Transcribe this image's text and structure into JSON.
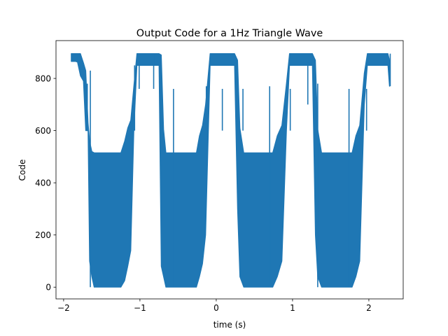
{
  "chart_data": {
    "type": "line",
    "title": "Output Code for a 1Hz Triangle Wave",
    "xlabel": "time (s)",
    "ylabel": "Code",
    "xlim": [
      -2.1,
      2.45
    ],
    "ylim": [
      -45,
      945
    ],
    "xticks": [
      -2,
      -1,
      0,
      1,
      2
    ],
    "xtick_labels": [
      "−2",
      "−1",
      "0",
      "1",
      "2"
    ],
    "yticks": [
      0,
      200,
      400,
      600,
      800
    ],
    "ytick_labels": [
      "0",
      "200",
      "400",
      "600",
      "800"
    ],
    "grid": false,
    "legend": "none",
    "series": [
      {
        "color": "#1f77b4",
        "envelope": [
          {
            "x": -1.9,
            "lo": 865,
            "hi": 895
          },
          {
            "x": -1.82,
            "lo": 865,
            "hi": 895
          },
          {
            "x": -1.78,
            "lo": 810,
            "hi": 895
          },
          {
            "x": -1.74,
            "lo": 790,
            "hi": 860
          },
          {
            "x": -1.71,
            "lo": 600,
            "hi": 830
          },
          {
            "x": -1.68,
            "lo": 600,
            "hi": 630
          },
          {
            "x": -1.66,
            "lo": 100,
            "hi": 560
          },
          {
            "x": -1.63,
            "lo": 40,
            "hi": 520
          },
          {
            "x": -1.6,
            "lo": 0,
            "hi": 515
          },
          {
            "x": -1.25,
            "lo": 0,
            "hi": 515
          },
          {
            "x": -1.2,
            "lo": 25,
            "hi": 560
          },
          {
            "x": -1.16,
            "lo": 80,
            "hi": 610
          },
          {
            "x": -1.12,
            "lo": 140,
            "hi": 640
          },
          {
            "x": -1.08,
            "lo": 600,
            "hi": 770
          },
          {
            "x": -1.04,
            "lo": 850,
            "hi": 895
          },
          {
            "x": -0.75,
            "lo": 850,
            "hi": 895
          },
          {
            "x": -0.72,
            "lo": 80,
            "hi": 890
          },
          {
            "x": -0.69,
            "lo": 40,
            "hi": 605
          },
          {
            "x": -0.66,
            "lo": 0,
            "hi": 515
          },
          {
            "x": -0.26,
            "lo": 0,
            "hi": 515
          },
          {
            "x": -0.22,
            "lo": 40,
            "hi": 580
          },
          {
            "x": -0.18,
            "lo": 90,
            "hi": 620
          },
          {
            "x": -0.14,
            "lo": 200,
            "hi": 700
          },
          {
            "x": -0.08,
            "lo": 850,
            "hi": 895
          },
          {
            "x": 0.24,
            "lo": 850,
            "hi": 895
          },
          {
            "x": 0.28,
            "lo": 300,
            "hi": 870
          },
          {
            "x": 0.31,
            "lo": 40,
            "hi": 610
          },
          {
            "x": 0.36,
            "lo": 0,
            "hi": 515
          },
          {
            "x": 0.74,
            "lo": 0,
            "hi": 515
          },
          {
            "x": 0.8,
            "lo": 40,
            "hi": 580
          },
          {
            "x": 0.86,
            "lo": 100,
            "hi": 620
          },
          {
            "x": 0.92,
            "lo": 600,
            "hi": 780
          },
          {
            "x": 0.96,
            "lo": 850,
            "hi": 895
          },
          {
            "x": 1.26,
            "lo": 850,
            "hi": 895
          },
          {
            "x": 1.3,
            "lo": 200,
            "hi": 870
          },
          {
            "x": 1.33,
            "lo": 40,
            "hi": 605
          },
          {
            "x": 1.38,
            "lo": 0,
            "hi": 515
          },
          {
            "x": 1.78,
            "lo": 0,
            "hi": 515
          },
          {
            "x": 1.83,
            "lo": 40,
            "hi": 580
          },
          {
            "x": 1.88,
            "lo": 100,
            "hi": 620
          },
          {
            "x": 1.94,
            "lo": 700,
            "hi": 820
          },
          {
            "x": 1.98,
            "lo": 850,
            "hi": 895
          },
          {
            "x": 2.25,
            "lo": 850,
            "hi": 895
          },
          {
            "x": 2.27,
            "lo": 770,
            "hi": 870
          }
        ],
        "spikes": [
          {
            "x": -1.83,
            "lo": 862,
            "hi": 895
          },
          {
            "x": -1.69,
            "lo": 600,
            "hi": 780
          },
          {
            "x": -1.65,
            "lo": 0,
            "hi": 830
          },
          {
            "x": -1.07,
            "lo": 600,
            "hi": 850
          },
          {
            "x": -1.01,
            "lo": 760,
            "hi": 895
          },
          {
            "x": -0.82,
            "lo": 760,
            "hi": 895
          },
          {
            "x": -0.56,
            "lo": 0,
            "hi": 760
          },
          {
            "x": -0.13,
            "lo": 600,
            "hi": 770
          },
          {
            "x": 0.08,
            "lo": 600,
            "hi": 760
          },
          {
            "x": 0.35,
            "lo": 600,
            "hi": 760
          },
          {
            "x": 0.7,
            "lo": 0,
            "hi": 770
          },
          {
            "x": 0.97,
            "lo": 600,
            "hi": 760
          },
          {
            "x": 1.2,
            "lo": 700,
            "hi": 860
          },
          {
            "x": 1.33,
            "lo": 0,
            "hi": 780
          },
          {
            "x": 1.74,
            "lo": 0,
            "hi": 760
          },
          {
            "x": 1.97,
            "lo": 600,
            "hi": 760
          },
          {
            "x": 2.28,
            "lo": 770,
            "hi": 895
          }
        ]
      }
    ]
  }
}
